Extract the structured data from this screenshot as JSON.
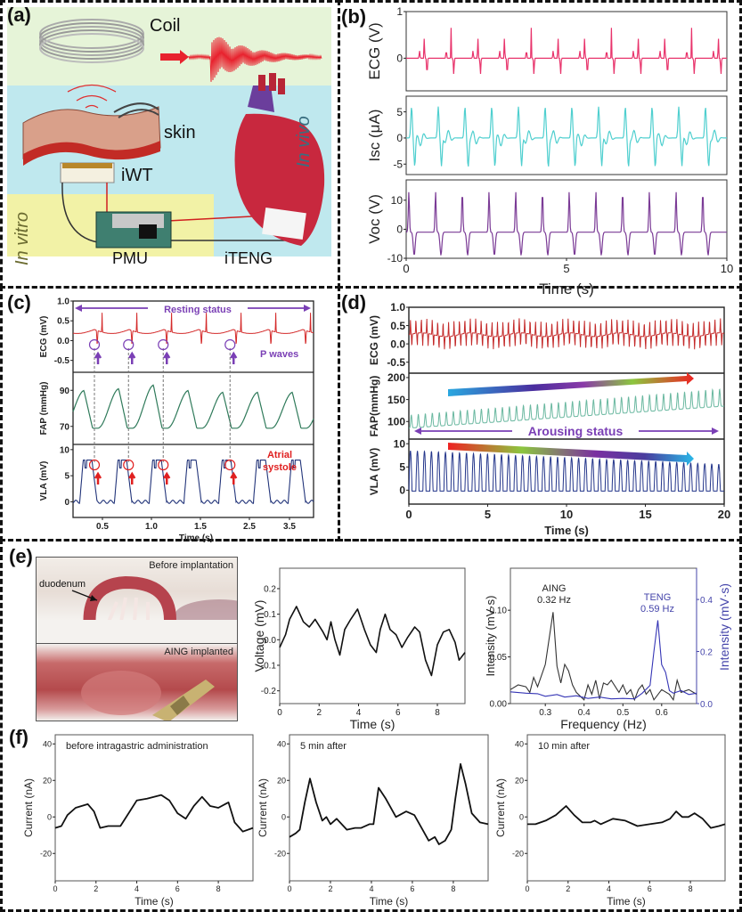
{
  "panels": {
    "a": {
      "label": "(a)",
      "coil_label": "Coil",
      "skin_label": "skin",
      "iwt_label": "iWT",
      "pmu_label": "PMU",
      "iteng_label": "iTENG",
      "in_vivo_label": "In vivo",
      "in_vitro_label": "In vitro",
      "colors": {
        "top_bg": "#e6f4d8",
        "vivo_bg": "#bfe8ee",
        "vitro_bg": "#f2f2a6",
        "signal": "#e8222e"
      }
    },
    "b": {
      "label": "(b)"
    },
    "c": {
      "label": "(c)",
      "resting_label": "Resting status",
      "p_waves_label": "P waves",
      "atrial_label_1": "Atrial",
      "atrial_label_2": "systole"
    },
    "d": {
      "label": "(d)",
      "arousing_label": "Arousing status"
    },
    "e": {
      "label": "(e)",
      "photo_top_label": "Before implantation",
      "duodenum_label": "duodenum",
      "photo_bottom_label": "AING implanted"
    },
    "f": {
      "label": "(f)"
    }
  },
  "chart_data": [
    {
      "id": "b",
      "type": "line",
      "xlabel": "Time (s)",
      "xlim": [
        0,
        10
      ],
      "xticks": [
        "0",
        "5",
        "10"
      ],
      "subplots": [
        {
          "ylabel": "ECG (V)",
          "ylim": [
            -0.7,
            1
          ],
          "yticks": [
            "1",
            "0"
          ],
          "color": "#e8336b",
          "beats_per_10s": 12,
          "peak": 0.65,
          "trough": -0.35
        },
        {
          "ylabel": "Isc (μA)",
          "ylim": [
            -7,
            8
          ],
          "yticks": [
            "5",
            "0",
            "-5"
          ],
          "color": "#4fcfcf",
          "beats_per_10s": 12,
          "peak": 6,
          "trough": -5.5
        },
        {
          "ylabel": "Voc (V)",
          "ylim": [
            -10,
            17
          ],
          "yticks": [
            "10",
            "0",
            "-10"
          ],
          "color": "#7b3b96",
          "beats_per_10s": 12,
          "peak": 14,
          "trough": -8
        }
      ]
    },
    {
      "id": "c",
      "type": "line",
      "xlabel": "Time (s)",
      "xlim": [
        0.25,
        3.85
      ],
      "xticks": [
        "0.5",
        "1.0",
        "1.5",
        "2.5",
        "3.5"
      ],
      "marker_times": [
        0.57,
        1.08,
        1.6,
        2.6
      ],
      "subplots": [
        {
          "ylabel": "ECG (mV)",
          "ylim": [
            -0.8,
            1.0
          ],
          "yticks": [
            "1.0",
            "0.5",
            "0.0",
            "-0.5"
          ],
          "color": "#d42a2a"
        },
        {
          "ylabel": "FAP (mmHg)",
          "ylim": [
            60,
            100
          ],
          "yticks": [
            "90",
            "70"
          ],
          "color": "#2f7a5a",
          "peaks": [
            90,
            91,
            93,
            90,
            89
          ],
          "baseline": 69
        },
        {
          "ylabel": "VLA (mV)",
          "ylim": [
            -3,
            11
          ],
          "yticks": [
            "10",
            "5",
            "0"
          ],
          "color": "#23357a",
          "peak": 8,
          "baseline": 0
        }
      ]
    },
    {
      "id": "d",
      "type": "line",
      "xlabel": "Time (s)",
      "xlim": [
        0,
        20
      ],
      "xticks": [
        "0",
        "5",
        "10",
        "15",
        "20"
      ],
      "subplots": [
        {
          "ylabel": "ECG (mV)",
          "ylim": [
            -0.8,
            1.0
          ],
          "yticks": [
            "1.0",
            "0.5",
            "0.0",
            "-0.5"
          ],
          "color": "#c42a2a",
          "beats": 58
        },
        {
          "ylabel": "FAP(mmHg)",
          "ylim": [
            60,
            210
          ],
          "yticks": [
            "200",
            "150",
            "100"
          ],
          "color": "#6ab8a0",
          "beats": 45,
          "start_range": [
            85,
            115
          ],
          "end_range": [
            135,
            175
          ]
        },
        {
          "ylabel": "VLA (mV)",
          "ylim": [
            -3,
            11
          ],
          "yticks": [
            "10",
            "5",
            "0"
          ],
          "color": "#23358a",
          "beats": 45,
          "start_peak": 8.5,
          "end_peak": 5.5
        }
      ]
    },
    {
      "id": "e-voltage",
      "type": "line",
      "xlabel": "Time (s)",
      "ylabel": "Voltage (mV)",
      "xlim": [
        0,
        9.4
      ],
      "ylim": [
        -0.25,
        0.28
      ],
      "xticks": [
        "0",
        "2",
        "4",
        "6",
        "8"
      ],
      "yticks": [
        "0.2",
        "0.1",
        "0.0",
        "-0.1",
        "-0.2"
      ],
      "color": "#111111",
      "x": [
        0,
        0.3,
        0.5,
        0.85,
        1.2,
        1.5,
        1.8,
        2.2,
        2.4,
        2.6,
        2.8,
        3.05,
        3.3,
        3.6,
        3.95,
        4.3,
        4.6,
        4.9,
        5.1,
        5.35,
        5.6,
        5.9,
        6.2,
        6.5,
        6.85,
        7.1,
        7.4,
        7.7,
        8.0,
        8.3,
        8.6,
        8.9,
        9.1,
        9.4
      ],
      "y": [
        -0.03,
        0.02,
        0.08,
        0.13,
        0.07,
        0.05,
        0.08,
        0.03,
        0.0,
        0.07,
        0.0,
        -0.06,
        0.04,
        0.08,
        0.12,
        0.04,
        -0.02,
        -0.05,
        0.04,
        0.1,
        0.04,
        0.02,
        -0.03,
        0.01,
        0.05,
        0.03,
        -0.08,
        -0.14,
        -0.02,
        0.03,
        0.04,
        -0.01,
        -0.08,
        -0.05
      ]
    },
    {
      "id": "e-frequency",
      "type": "line",
      "xlabel": "Frequency (Hz)",
      "ylabel": "Intensity (mV·s)",
      "ylabel_right": "Intensity (mV·s)",
      "xlim": [
        0.21,
        0.69
      ],
      "ylim": [
        0,
        0.145
      ],
      "ylim_right": [
        0,
        0.52
      ],
      "xticks": [
        "0.3",
        "0.4",
        "0.5",
        "0.6"
      ],
      "yticks": [
        "0.10",
        "0.05",
        "0.00"
      ],
      "yticks_right": [
        "0.4",
        "0.2",
        "0.0"
      ],
      "annotations": [
        {
          "text_1": "AING",
          "text_2": "0.32 Hz",
          "color": "#222222"
        },
        {
          "text_1": "TENG",
          "text_2": "0.59 Hz",
          "color": "#4444aa"
        }
      ],
      "series": [
        {
          "name": "AING",
          "axis": "left",
          "color": "#333333",
          "x": [
            0.21,
            0.23,
            0.25,
            0.26,
            0.27,
            0.28,
            0.3,
            0.32,
            0.33,
            0.34,
            0.35,
            0.36,
            0.37,
            0.38,
            0.4,
            0.41,
            0.42,
            0.43,
            0.44,
            0.45,
            0.46,
            0.47,
            0.49,
            0.5,
            0.51,
            0.52,
            0.53,
            0.54,
            0.55,
            0.56,
            0.57,
            0.58,
            0.6,
            0.62,
            0.63,
            0.64,
            0.65,
            0.67,
            0.69
          ],
          "y": [
            0.015,
            0.02,
            0.018,
            0.012,
            0.028,
            0.018,
            0.042,
            0.098,
            0.04,
            0.022,
            0.042,
            0.035,
            0.02,
            0.012,
            0.004,
            0.02,
            0.01,
            0.025,
            0.005,
            0.022,
            0.02,
            0.025,
            0.012,
            0.02,
            0.01,
            0.015,
            0.004,
            0.015,
            0.02,
            0.01,
            0.015,
            0.004,
            0.015,
            0.01,
            0.004,
            0.025,
            0.012,
            0.015,
            0.01
          ]
        },
        {
          "name": "TENG",
          "axis": "right",
          "color": "#3535b5",
          "x": [
            0.21,
            0.25,
            0.28,
            0.3,
            0.33,
            0.35,
            0.38,
            0.41,
            0.44,
            0.47,
            0.5,
            0.53,
            0.55,
            0.57,
            0.58,
            0.59,
            0.6,
            0.61,
            0.62,
            0.63,
            0.65,
            0.67,
            0.69
          ],
          "y": [
            0.045,
            0.04,
            0.038,
            0.028,
            0.035,
            0.025,
            0.03,
            0.02,
            0.025,
            0.018,
            0.02,
            0.018,
            0.04,
            0.07,
            0.2,
            0.32,
            0.15,
            0.12,
            0.05,
            0.04,
            0.05,
            0.035,
            0.04
          ]
        }
      ]
    },
    {
      "id": "f-before",
      "type": "line",
      "title": "before intragastric administration",
      "xlabel": "Time (s)",
      "ylabel": "Current (nA)",
      "xlim": [
        0,
        9.7
      ],
      "ylim": [
        -35,
        45
      ],
      "xticks": [
        "0",
        "2",
        "4",
        "6",
        "8"
      ],
      "yticks": [
        "40",
        "20",
        "0",
        "-20"
      ],
      "color": "#111111",
      "x": [
        0,
        0.3,
        0.6,
        1.0,
        1.6,
        1.9,
        2.2,
        2.6,
        3.2,
        3.6,
        4.0,
        4.5,
        5.2,
        5.6,
        6.0,
        6.4,
        6.8,
        7.2,
        7.6,
        8.0,
        8.5,
        8.8,
        9.2,
        9.7
      ],
      "y": [
        -6,
        -5,
        1,
        5,
        7,
        3,
        -6,
        -5,
        -5,
        2,
        9,
        10,
        12,
        9,
        2,
        -1,
        6,
        11,
        6,
        5,
        8,
        -3,
        -8,
        -6
      ]
    },
    {
      "id": "f-5min",
      "type": "line",
      "title": "5 min after",
      "xlabel": "Time (s)",
      "ylabel": "Current (nA)",
      "xlim": [
        0,
        9.7
      ],
      "ylim": [
        -35,
        45
      ],
      "xticks": [
        "0",
        "2",
        "4",
        "6",
        "8"
      ],
      "yticks": [
        "40",
        "20",
        "0",
        "-20"
      ],
      "color": "#111111",
      "x": [
        0,
        0.3,
        0.5,
        0.75,
        1.0,
        1.3,
        1.6,
        1.8,
        2.0,
        2.3,
        2.8,
        3.2,
        3.5,
        3.9,
        4.1,
        4.35,
        4.7,
        5.2,
        5.7,
        6.1,
        6.5,
        6.8,
        7.1,
        7.3,
        7.6,
        7.9,
        8.1,
        8.35,
        8.6,
        8.9,
        9.3,
        9.7
      ],
      "y": [
        -11,
        -9,
        -7,
        8,
        21,
        8,
        -2,
        0,
        -4,
        -1,
        -7,
        -6,
        -6,
        -4,
        -4,
        16,
        10,
        0,
        3,
        1,
        -7,
        -13,
        -11,
        -15,
        -13,
        -7,
        10,
        29,
        18,
        2,
        -3,
        -4
      ]
    },
    {
      "id": "f-10min",
      "type": "line",
      "title": "10 min after",
      "xlabel": "Time (s)",
      "ylabel": "Current (nA)",
      "xlim": [
        0,
        9.7
      ],
      "ylim": [
        -35,
        45
      ],
      "xticks": [
        "0",
        "2",
        "4",
        "6",
        "8"
      ],
      "yticks": [
        "40",
        "20",
        "0",
        "-20"
      ],
      "color": "#111111",
      "x": [
        0,
        0.4,
        0.9,
        1.4,
        1.9,
        2.3,
        2.7,
        3.1,
        3.3,
        3.6,
        4.2,
        4.8,
        5.4,
        6.0,
        6.6,
        7.0,
        7.3,
        7.6,
        7.9,
        8.2,
        8.6,
        9.0,
        9.4,
        9.7
      ],
      "y": [
        -4,
        -4,
        -2,
        1,
        6,
        1,
        -3,
        -3,
        -2,
        -4,
        -1,
        -2,
        -5,
        -4,
        -3,
        -1,
        3,
        0,
        0,
        2,
        -1,
        -6,
        -5,
        -4
      ]
    }
  ]
}
